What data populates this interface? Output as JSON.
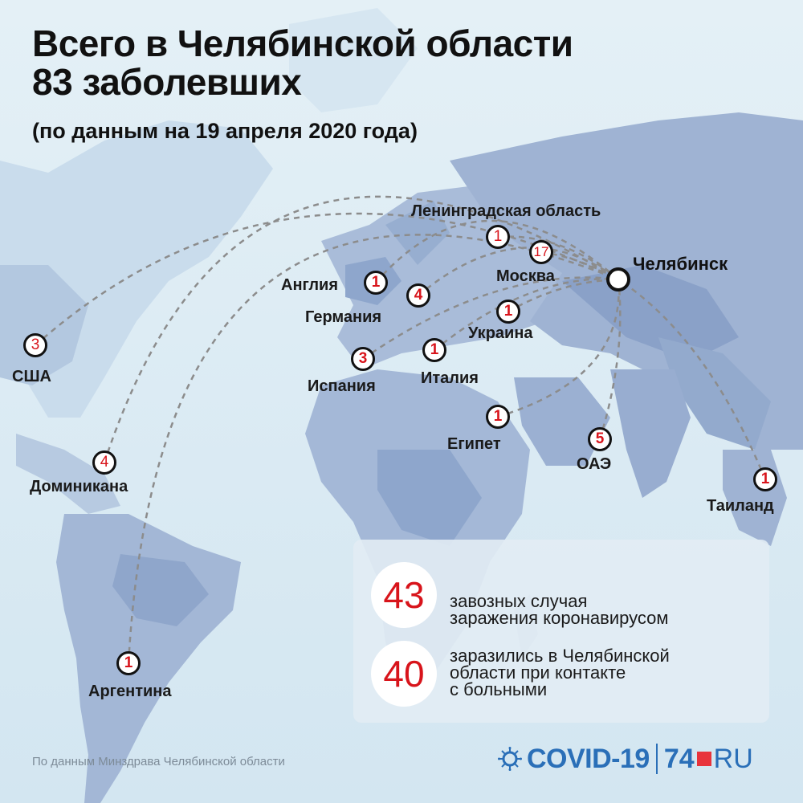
{
  "title_line1": "Всего в Челябинской области",
  "title_line2": "83 заболевших",
  "subtitle": "(по данным на 19 апреля 2020 года)",
  "hub": {
    "name": "Челябинск"
  },
  "locations": [
    {
      "id": "usa",
      "name": "США",
      "count": "3"
    },
    {
      "id": "dominicana",
      "name": "Доминикана",
      "count": "4"
    },
    {
      "id": "argentina",
      "name": "Аргентина",
      "count": "1"
    },
    {
      "id": "england",
      "name": "Англия",
      "count": "1"
    },
    {
      "id": "germany",
      "name": "Германия",
      "count": "4"
    },
    {
      "id": "spain",
      "name": "Испания",
      "count": "3"
    },
    {
      "id": "italy",
      "name": "Италия",
      "count": "1"
    },
    {
      "id": "leningrad",
      "name": "Ленинградская область",
      "count": "1"
    },
    {
      "id": "moscow",
      "name": "Москва",
      "count": "17"
    },
    {
      "id": "ukraine",
      "name": "Украина",
      "count": "1"
    },
    {
      "id": "egypt",
      "name": "Египет",
      "count": "1"
    },
    {
      "id": "uae",
      "name": "ОАЭ",
      "count": "5"
    },
    {
      "id": "thailand",
      "name": "Таиланд",
      "count": "1"
    }
  ],
  "stats": [
    {
      "value": "43",
      "text_line1": "завозных случая",
      "text_line2": "заражения коронавирусом"
    },
    {
      "value": "40",
      "text_line1": "заразились в Челябинской",
      "text_line2": "области при контакте",
      "text_line3": "с больными"
    }
  ],
  "source": "По данным Минздрава Челябинской области",
  "brand": {
    "covid": "COVID-19",
    "num": "74",
    "ru": "RU"
  },
  "colors": {
    "accent_red": "#d8141b",
    "brand_blue": "#2a6fb8",
    "ocean": "#dcebf3",
    "land": "#9fb3d3"
  }
}
